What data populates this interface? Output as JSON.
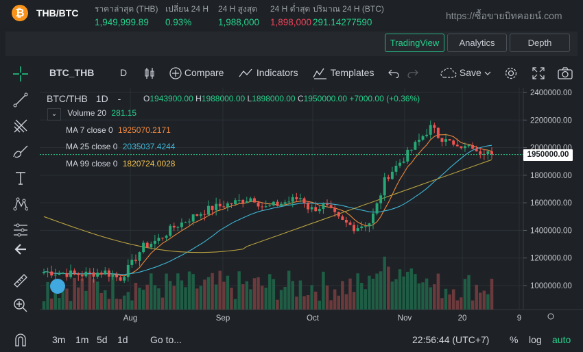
{
  "header": {
    "logo_glyph": "₿",
    "pair": "THB/BTC",
    "stats": [
      {
        "label": "ราคาล่าสุด (THB)",
        "value": "1,949,999.89",
        "color": "#26d18c"
      },
      {
        "label": "เปลี่ยน 24 H",
        "value": "0.93%",
        "color": "#26d18c"
      },
      {
        "label": "24 H สูงสุด",
        "value": "1,988,000",
        "color": "#26d18c"
      },
      {
        "label": "24 H ต่ำสุด",
        "value": "1,898,000",
        "color": "#f0435a"
      },
      {
        "label": "ปริมาณ 24 H (BTC)",
        "value": "291.14277590",
        "color": "#26d18c"
      }
    ],
    "website": "https://ซื้อขายบิทคอยน์.com"
  },
  "tabs": [
    {
      "label": "TradingView",
      "active": true
    },
    {
      "label": "Analytics",
      "active": false
    },
    {
      "label": "Depth",
      "active": false
    }
  ],
  "toolbar": {
    "symbol": "BTC_THB",
    "interval": "D",
    "compare": "Compare",
    "indicators": "Indicators",
    "templates": "Templates",
    "save": "Save"
  },
  "legend": {
    "symbol": "BTC/THB",
    "interval": "1D",
    "dash": "-",
    "o_label": "O",
    "o": "1943900.00",
    "h_label": "H",
    "h": "1988000.00",
    "l_label": "L",
    "l": "1898000.00",
    "c_label": "C",
    "c": "1950000.00",
    "change": "+7000.00 (+0.36%)",
    "volume_label": "Volume 20",
    "volume": "281.15",
    "ma": [
      {
        "label": "MA 7 close 0",
        "value": "1925070.2171",
        "color": "#f0883e"
      },
      {
        "label": "MA 25 close 0",
        "value": "2035037.4244",
        "color": "#3fb7d9"
      },
      {
        "label": "MA 99 close 0",
        "value": "1820724.0028",
        "color": "#f2c14e"
      }
    ]
  },
  "chart_data": {
    "type": "candlestick",
    "y_ticks": [
      "2400000.00",
      "2200000.00",
      "2000000.00",
      "1800000.00",
      "1600000.00",
      "1400000.00",
      "1200000.00",
      "1000000.00"
    ],
    "ylim": [
      900000,
      2450000
    ],
    "x_ticks": [
      "Aug",
      "Sep",
      "Oct",
      "Nov",
      "20",
      "9"
    ],
    "last_price": "1950000.00",
    "colors": {
      "up": "#26a876",
      "down": "#ef5350",
      "vol_up": "#1f5d45",
      "vol_down": "#6b3a3c",
      "ma7": "#f0883e",
      "ma25": "#3fb7d9",
      "ma99": "#b8a040"
    }
  },
  "bottom": {
    "ranges": [
      "3m",
      "1m",
      "5d",
      "1d"
    ],
    "goto": "Go to...",
    "time": "22:56:44 (UTC+7)",
    "percent": "%",
    "log": "log",
    "auto": "auto"
  }
}
